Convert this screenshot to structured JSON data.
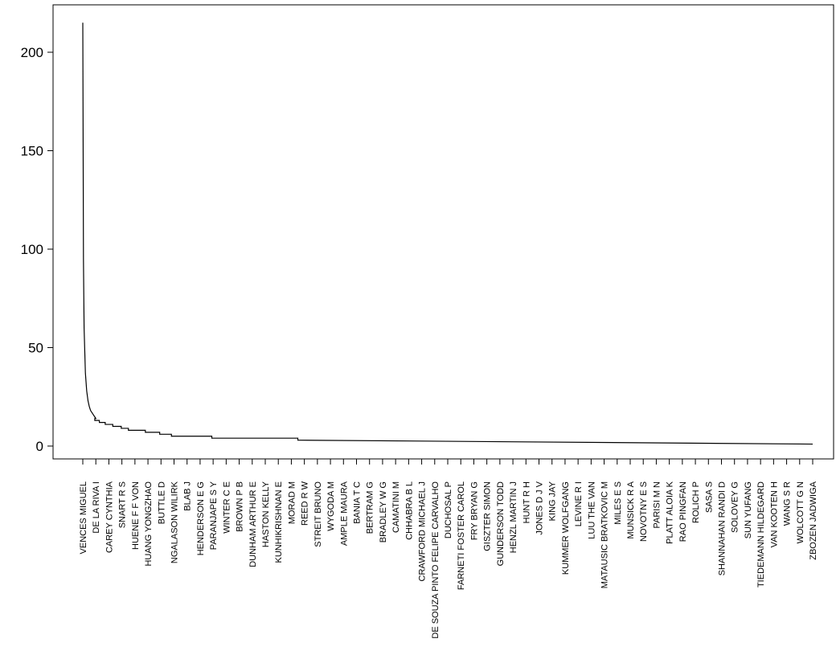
{
  "chart_data": {
    "type": "line",
    "title": "",
    "xlabel": "",
    "ylabel": "",
    "ylim": [
      0,
      220
    ],
    "y_ticks": [
      0,
      50,
      100,
      150,
      200
    ],
    "grid": false,
    "legend": "none",
    "line_color": "#000000",
    "categories": [
      "VENCES MIGUEL",
      "DE LA RIVA I",
      "CAREY CYNTHIA",
      "SNART R S",
      "HUENE F F VON",
      "HUANG YONGZHAO",
      "BUTTLE D",
      "NGALASON WILIRK",
      "BLAB J",
      "HENDERSON E G",
      "PARANJAPE S Y",
      "WINTER C E",
      "BROWN P B",
      "DUNHAM ARTHUR E",
      "HASTON KELLY",
      "KUNHIKRISHNAN E",
      "MORAD M",
      "REED R W",
      "STREIT BRUNO",
      "WYGODA M",
      "AMPLE MAURA",
      "BANIA T C",
      "BERTRAM G",
      "BRADLEY W G",
      "CAMATINI M",
      "CHHABRA B L",
      "CRAWFORD MICHAEL J",
      "DE SOUZA PINTO FELIPE CARVALHO",
      "DUCHOSAL P",
      "FARNETI FOSTER CAROL",
      "FRY BRYAN G",
      "GISZTER SIMON",
      "GUNDERSON TODD",
      "HENZL MARTIN J",
      "HUNT R H",
      "JONES D J V",
      "KING JAY",
      "KUMMER WOLFGANG",
      "LEVINE R I",
      "LUU THE VAN",
      "MATAUSIC BRATKOVIC M",
      "MILES E S",
      "MUNSICK R A",
      "NOVOTNY E S",
      "PARISI M N",
      "PLATT ALOIA K",
      "RAO PINGFAN",
      "ROLICH P",
      "SASA S",
      "SHANNAHAN RANDI D",
      "SOLOVEY G",
      "SUN YUFANG",
      "TIEDEMANN HILDEGARD",
      "VAN KOOTEN H",
      "WANG S R",
      "WOLCOTT G N",
      "ZBOZEN JADWIGA"
    ],
    "values": [
      215,
      14,
      10,
      8,
      6,
      5,
      4,
      4,
      3,
      3,
      3,
      3,
      2,
      2,
      2,
      2,
      2,
      2,
      2,
      2,
      1,
      1,
      1,
      1,
      1,
      1,
      1,
      1,
      1,
      1,
      1,
      1,
      1,
      1,
      1,
      1,
      1,
      1,
      1,
      1,
      1,
      1,
      1,
      1,
      1,
      1,
      1,
      1,
      1,
      1,
      1,
      1,
      1,
      1,
      1,
      1,
      1
    ],
    "head_curve": {
      "x": [
        0,
        0.05,
        0.1,
        0.2,
        0.3,
        0.4,
        0.5,
        0.6,
        0.7,
        0.8,
        0.9,
        1.0
      ],
      "y": [
        215,
        95,
        60,
        37,
        28,
        23,
        20,
        18,
        17,
        16,
        15,
        14
      ]
    },
    "transitions": {
      "x": [
        0.92,
        1.27,
        1.72,
        2.3,
        2.95,
        3.5,
        4.8,
        5.9,
        6.8,
        9.9,
        16.5
      ],
      "y_from": [
        14,
        13,
        12,
        11,
        10,
        9,
        8,
        7,
        6,
        5,
        4
      ]
    }
  }
}
